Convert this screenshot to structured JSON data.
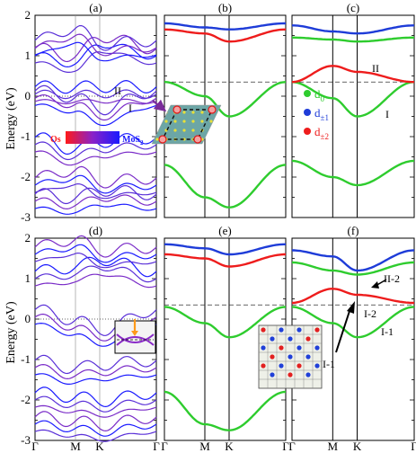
{
  "figure": {
    "ylabel": "Energy (eV)",
    "xticks": [
      "Γ",
      "M",
      "K",
      "Γ"
    ]
  },
  "colors": {
    "os": "#ff1a1a",
    "mos2": "#1a1aff",
    "mixed": "#7a2cc8",
    "d0": "#2ecc2e",
    "dpm1": "#1e3cd8",
    "dpm2": "#ee1c1c"
  },
  "legend_os_mos2": {
    "left": "Os",
    "right": "MoS",
    "right_sub": "2"
  },
  "legend_d": [
    {
      "label": "d",
      "sub": "0",
      "color": "#2ecc2e"
    },
    {
      "label": "d",
      "sub": "±1",
      "color": "#1e3cd8"
    },
    {
      "label": "d",
      "sub": "±2",
      "color": "#ee1c1c"
    }
  ],
  "chart_data": [
    {
      "panel": "(a)",
      "type": "line",
      "x": [
        "Γ",
        "M",
        "K",
        "Γ"
      ],
      "ylim": [
        -3,
        2
      ],
      "yticks": [
        -3,
        -2,
        -1,
        0,
        1,
        2
      ],
      "fermi_level": 0.0,
      "annotations": [
        "I",
        "II"
      ],
      "series": [
        {
          "values": [
            -0.05,
            -0.2,
            -0.5,
            -0.05
          ]
        },
        {
          "values": [
            0.05,
            0.04,
            0.06,
            0.05
          ]
        },
        {
          "values": [
            1.0,
            0.8,
            1.3,
            1.0
          ]
        },
        {
          "values": [
            1.2,
            1.5,
            1.1,
            1.2
          ]
        },
        {
          "values": [
            -1.2,
            -1.5,
            -1.3,
            -1.2
          ]
        },
        {
          "values": [
            -2.2,
            -2.0,
            -2.3,
            -2.2
          ]
        },
        {
          "values": [
            -2.6,
            -2.7,
            -2.5,
            -2.6
          ]
        }
      ]
    },
    {
      "panel": "(b)",
      "type": "scatter",
      "x": [
        "Γ",
        "M",
        "K",
        "Γ"
      ],
      "ylim": [
        -3,
        2
      ],
      "fermi_level": 0.35,
      "series": [
        {
          "name": "d0",
          "values": [
            0.35,
            0.0,
            -0.5,
            0.35
          ]
        },
        {
          "name": "d0",
          "values": [
            -1.7,
            -2.5,
            -2.75,
            -1.7
          ]
        },
        {
          "name": "d±2",
          "values": [
            1.65,
            1.55,
            1.35,
            1.65
          ]
        },
        {
          "name": "d±1",
          "values": [
            1.8,
            1.7,
            1.65,
            1.8
          ]
        }
      ]
    },
    {
      "panel": "(c)",
      "type": "scatter",
      "x": [
        "Γ",
        "M",
        "K",
        "Γ"
      ],
      "ylim": [
        -3,
        2
      ],
      "fermi_level": 0.35,
      "annotations": [
        "I",
        "II"
      ],
      "series": [
        {
          "name": "d0",
          "values": [
            0.35,
            -0.05,
            -0.5,
            0.35
          ]
        },
        {
          "name": "d±2",
          "values": [
            0.35,
            0.75,
            0.6,
            0.35
          ]
        },
        {
          "name": "d±1",
          "values": [
            1.75,
            1.6,
            1.55,
            1.75
          ]
        },
        {
          "name": "d0",
          "values": [
            1.45,
            1.4,
            1.35,
            1.45
          ]
        },
        {
          "name": "d0",
          "values": [
            -1.6,
            -2.0,
            -2.2,
            -1.6
          ]
        }
      ]
    },
    {
      "panel": "(d)",
      "type": "line",
      "x": [
        "Γ",
        "M",
        "K",
        "Γ"
      ],
      "ylim": [
        -3,
        2
      ],
      "yticks": [
        -3,
        -2,
        -1,
        0,
        1,
        2
      ],
      "fermi_level": 0.0,
      "series": [
        {
          "values": [
            0.05,
            -0.2,
            -0.45,
            0.05
          ]
        },
        {
          "values": [
            1.0,
            1.1,
            1.3,
            1.0
          ]
        },
        {
          "values": [
            1.6,
            1.8,
            1.5,
            1.6
          ]
        },
        {
          "values": [
            -1.2,
            -1.4,
            -1.3,
            -1.2
          ]
        },
        {
          "values": [
            -2.0,
            -2.1,
            -2.2,
            -2.0
          ]
        },
        {
          "values": [
            -2.6,
            -2.7,
            -2.8,
            -2.6
          ]
        }
      ]
    },
    {
      "panel": "(e)",
      "type": "scatter",
      "x": [
        "Γ",
        "M",
        "K",
        "Γ"
      ],
      "ylim": [
        -3,
        2
      ],
      "fermi_level": 0.35,
      "series": [
        {
          "name": "d0",
          "values": [
            0.3,
            -0.1,
            -0.45,
            0.3
          ]
        },
        {
          "name": "d0",
          "values": [
            -1.8,
            -2.6,
            -2.75,
            -1.8
          ]
        },
        {
          "name": "d±2",
          "values": [
            1.6,
            1.5,
            1.3,
            1.6
          ]
        },
        {
          "name": "d±1",
          "values": [
            1.85,
            1.75,
            1.6,
            1.85
          ]
        }
      ]
    },
    {
      "panel": "(f)",
      "type": "scatter",
      "x": [
        "Γ",
        "M",
        "K",
        "Γ"
      ],
      "ylim": [
        -3,
        2
      ],
      "fermi_level": 0.35,
      "annotations": [
        "II-2",
        "I-2",
        "II-1",
        "I-1"
      ],
      "series": [
        {
          "name": "d0",
          "values": [
            0.3,
            -0.1,
            -0.45,
            0.3
          ]
        },
        {
          "name": "d±2",
          "values": [
            0.4,
            0.75,
            0.6,
            0.4
          ]
        },
        {
          "name": "d±1",
          "values": [
            1.7,
            1.55,
            1.2,
            1.7
          ]
        },
        {
          "name": "d0",
          "values": [
            1.4,
            1.2,
            1.1,
            1.4
          ]
        }
      ]
    }
  ]
}
